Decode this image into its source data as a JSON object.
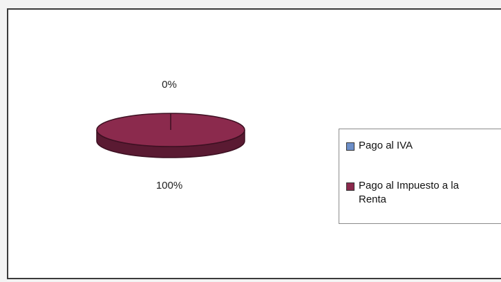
{
  "chart_data": {
    "type": "pie",
    "style": "3d",
    "title": "",
    "slices": [
      {
        "label": "Pago al IVA",
        "value": 0,
        "percent_label": "0%",
        "color": "#6d8fc9"
      },
      {
        "label": "Pago al Impuesto a la Renta",
        "value": 100,
        "percent_label": "100%",
        "color": "#8b2a4d"
      }
    ],
    "legend_position": "right",
    "side_color": "#5a1a32",
    "edge_color": "#3d1022"
  }
}
